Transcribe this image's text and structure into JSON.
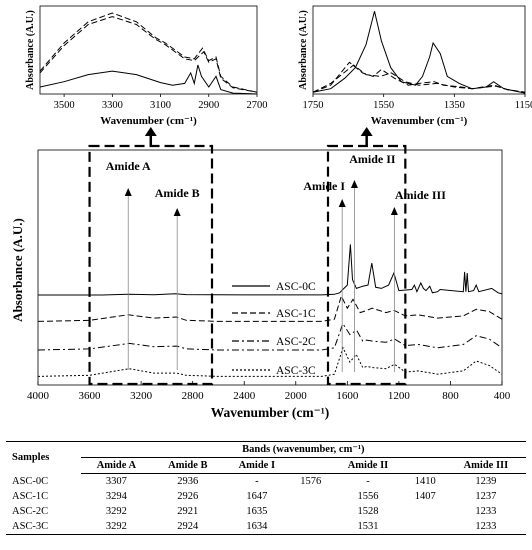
{
  "chart_data": [
    {
      "id": "main",
      "type": "line",
      "xlabel": "Wavenumber",
      "ylabel": "Absorbance (A.U.)",
      "xlim": [
        4000,
        400
      ],
      "x_ticks": [
        "4000",
        "3600",
        "3200",
        "2800",
        "2400",
        "2000",
        "1600",
        "1200",
        "800",
        "400"
      ],
      "series": [
        {
          "name": "ASC-0C",
          "style": "solid",
          "offset": 0.8,
          "points": [
            [
              4000,
              0
            ],
            [
              3500,
              0
            ],
            [
              3300,
              0.006
            ],
            [
              3100,
              0.003
            ],
            [
              2936,
              0.012
            ],
            [
              2850,
              0.004
            ],
            [
              2400,
              0.001
            ],
            [
              1800,
              0.001
            ],
            [
              1700,
              0.006
            ],
            [
              1660,
              0.02
            ],
            [
              1635,
              0.05
            ],
            [
              1600,
              0.09
            ],
            [
              1576,
              0.46
            ],
            [
              1560,
              0.14
            ],
            [
              1530,
              0.06
            ],
            [
              1480,
              0.08
            ],
            [
              1440,
              0.09
            ],
            [
              1410,
              0.29
            ],
            [
              1380,
              0.07
            ],
            [
              1336,
              0.06
            ],
            [
              1280,
              0.09
            ],
            [
              1239,
              0.2
            ],
            [
              1200,
              0.04
            ],
            [
              1100,
              0.05
            ],
            [
              1080,
              0.09
            ],
            [
              1060,
              0.03
            ],
            [
              1030,
              0.11
            ],
            [
              1010,
              0.06
            ],
            [
              990,
              0.04
            ],
            [
              960,
              0.08
            ],
            [
              940,
              0.02
            ],
            [
              900,
              0.03
            ],
            [
              880,
              0.05
            ],
            [
              700,
              0.03
            ],
            [
              690,
              0.21
            ],
            [
              680,
              0.03
            ],
            [
              670,
              0.2
            ],
            [
              660,
              0.03
            ],
            [
              620,
              0.04
            ],
            [
              600,
              0.09
            ],
            [
              580,
              0.03
            ],
            [
              480,
              0.06
            ],
            [
              430,
              0.02
            ],
            [
              400,
              0.01
            ]
          ]
        },
        {
          "name": "ASC-1C",
          "style": "dashed",
          "offset": 0.56,
          "points": [
            [
              4000,
              0
            ],
            [
              3600,
              0.01
            ],
            [
              3300,
              0.06
            ],
            [
              3100,
              0.03
            ],
            [
              2926,
              0.04
            ],
            [
              2850,
              0.01
            ],
            [
              2600,
              0
            ],
            [
              1800,
              0
            ],
            [
              1700,
              0.02
            ],
            [
              1647,
              0.23
            ],
            [
              1600,
              0.12
            ],
            [
              1556,
              0.2
            ],
            [
              1500,
              0.08
            ],
            [
              1450,
              0.1
            ],
            [
              1407,
              0.12
            ],
            [
              1300,
              0.08
            ],
            [
              1237,
              0.1
            ],
            [
              1150,
              0.05
            ],
            [
              1050,
              0.06
            ],
            [
              900,
              0.03
            ],
            [
              700,
              0.05
            ],
            [
              600,
              0.11
            ],
            [
              500,
              0.09
            ],
            [
              400,
              0.02
            ]
          ]
        },
        {
          "name": "ASC-2C",
          "style": "dashdot",
          "offset": 0.3,
          "points": [
            [
              4000,
              0
            ],
            [
              3600,
              0.01
            ],
            [
              3292,
              0.06
            ],
            [
              3100,
              0.03
            ],
            [
              2921,
              0.035
            ],
            [
              2850,
              0.01
            ],
            [
              2600,
              0
            ],
            [
              1800,
              0
            ],
            [
              1700,
              0.02
            ],
            [
              1635,
              0.24
            ],
            [
              1580,
              0.14
            ],
            [
              1528,
              0.18
            ],
            [
              1480,
              0.08
            ],
            [
              1450,
              0.09
            ],
            [
              1400,
              0.08
            ],
            [
              1300,
              0.07
            ],
            [
              1233,
              0.1
            ],
            [
              1150,
              0.04
            ],
            [
              1050,
              0.05
            ],
            [
              900,
              0.02
            ],
            [
              700,
              0.05
            ],
            [
              600,
              0.13
            ],
            [
              500,
              0.1
            ],
            [
              400,
              0.02
            ]
          ]
        },
        {
          "name": "ASC-3C",
          "style": "dotted",
          "offset": 0.06,
          "points": [
            [
              4000,
              0
            ],
            [
              3600,
              0.01
            ],
            [
              3292,
              0.07
            ],
            [
              3100,
              0.03
            ],
            [
              2924,
              0.03
            ],
            [
              2850,
              0.01
            ],
            [
              2600,
              0
            ],
            [
              1800,
              0
            ],
            [
              1700,
              0.02
            ],
            [
              1634,
              0.26
            ],
            [
              1580,
              0.13
            ],
            [
              1531,
              0.2
            ],
            [
              1480,
              0.08
            ],
            [
              1450,
              0.09
            ],
            [
              1400,
              0.08
            ],
            [
              1300,
              0.07
            ],
            [
              1233,
              0.11
            ],
            [
              1150,
              0.04
            ],
            [
              1050,
              0.05
            ],
            [
              900,
              0.02
            ],
            [
              700,
              0.05
            ],
            [
              600,
              0.14
            ],
            [
              500,
              0.1
            ],
            [
              400,
              0.02
            ]
          ]
        }
      ],
      "annotations": [
        {
          "label": "Amide A",
          "x": 3300
        },
        {
          "label": "Amide B",
          "x": 2920
        },
        {
          "label": "Amide I",
          "x": 1640
        },
        {
          "label": "Amide II",
          "x": 1545
        },
        {
          "label": "Amide III",
          "x": 1235
        }
      ],
      "zoom_boxes": [
        [
          3600,
          2650
        ],
        [
          1750,
          1150
        ]
      ]
    },
    {
      "id": "inset_left",
      "type": "line",
      "xlabel": "Wavenumber",
      "ylabel": "Absorbance (A.U.)",
      "xlim": [
        3600,
        2700
      ],
      "x_ticks": [
        "3500",
        "3300",
        "3100",
        "2900",
        "2700"
      ],
      "series": [
        {
          "name": "ASC-0C",
          "style": "solid",
          "points": [
            [
              3600,
              0.08
            ],
            [
              3500,
              0.14
            ],
            [
              3400,
              0.22
            ],
            [
              3300,
              0.26
            ],
            [
              3200,
              0.22
            ],
            [
              3100,
              0.13
            ],
            [
              3050,
              0.1
            ],
            [
              3000,
              0.12
            ],
            [
              2975,
              0.24
            ],
            [
              2960,
              0.12
            ],
            [
              2945,
              0.33
            ],
            [
              2930,
              0.2
            ],
            [
              2900,
              0.08
            ],
            [
              2870,
              0.2
            ],
            [
              2850,
              0.05
            ],
            [
              2800,
              0.01
            ],
            [
              2700,
              0
            ]
          ]
        },
        {
          "name": "ASC-1C",
          "style": "dashed",
          "points": [
            [
              3600,
              0.26
            ],
            [
              3500,
              0.58
            ],
            [
              3400,
              0.82
            ],
            [
              3300,
              0.92
            ],
            [
              3200,
              0.82
            ],
            [
              3120,
              0.64
            ],
            [
              3080,
              0.58
            ],
            [
              3000,
              0.42
            ],
            [
              2960,
              0.4
            ],
            [
              2926,
              0.52
            ],
            [
              2900,
              0.38
            ],
            [
              2870,
              0.42
            ],
            [
              2850,
              0.2
            ],
            [
              2800,
              0.08
            ],
            [
              2700,
              0.02
            ]
          ]
        },
        {
          "name": "ASC-2C",
          "style": "dashed",
          "points": [
            [
              3600,
              0.24
            ],
            [
              3500,
              0.55
            ],
            [
              3400,
              0.79
            ],
            [
              3300,
              0.88
            ],
            [
              3200,
              0.79
            ],
            [
              3120,
              0.62
            ],
            [
              3080,
              0.56
            ],
            [
              3000,
              0.4
            ],
            [
              2960,
              0.38
            ],
            [
              2921,
              0.48
            ],
            [
              2900,
              0.36
            ],
            [
              2870,
              0.4
            ],
            [
              2850,
              0.18
            ],
            [
              2800,
              0.07
            ],
            [
              2700,
              0.02
            ]
          ]
        }
      ]
    },
    {
      "id": "inset_right",
      "type": "line",
      "xlabel": "Wavenumber",
      "ylabel": "Absorbance (A.U.)",
      "xlim": [
        1750,
        1150
      ],
      "x_ticks": [
        "1750",
        "1550",
        "1350",
        "1150"
      ],
      "series": [
        {
          "name": "ASC-0C",
          "style": "solid",
          "points": [
            [
              1750,
              0.02
            ],
            [
              1700,
              0.06
            ],
            [
              1660,
              0.18
            ],
            [
              1630,
              0.3
            ],
            [
              1600,
              0.56
            ],
            [
              1576,
              0.94
            ],
            [
              1556,
              0.6
            ],
            [
              1530,
              0.3
            ],
            [
              1500,
              0.14
            ],
            [
              1460,
              0.1
            ],
            [
              1440,
              0.2
            ],
            [
              1420,
              0.42
            ],
            [
              1410,
              0.58
            ],
            [
              1390,
              0.46
            ],
            [
              1370,
              0.2
            ],
            [
              1336,
              0.12
            ],
            [
              1300,
              0.06
            ],
            [
              1260,
              0.08
            ],
            [
              1239,
              0.14
            ],
            [
              1210,
              0.06
            ],
            [
              1150,
              0.01
            ]
          ]
        },
        {
          "name": "ASC-1C",
          "style": "dashed",
          "points": [
            [
              1750,
              0.02
            ],
            [
              1700,
              0.1
            ],
            [
              1647,
              0.36
            ],
            [
              1610,
              0.24
            ],
            [
              1580,
              0.2
            ],
            [
              1556,
              0.28
            ],
            [
              1520,
              0.18
            ],
            [
              1480,
              0.1
            ],
            [
              1450,
              0.12
            ],
            [
              1407,
              0.14
            ],
            [
              1380,
              0.1
            ],
            [
              1330,
              0.08
            ],
            [
              1300,
              0.06
            ],
            [
              1237,
              0.1
            ],
            [
              1200,
              0.05
            ],
            [
              1150,
              0.02
            ]
          ]
        },
        {
          "name": "ASC-2C",
          "style": "dashed",
          "points": [
            [
              1750,
              0.02
            ],
            [
              1700,
              0.12
            ],
            [
              1635,
              0.33
            ],
            [
              1600,
              0.22
            ],
            [
              1560,
              0.2
            ],
            [
              1528,
              0.24
            ],
            [
              1490,
              0.14
            ],
            [
              1450,
              0.1
            ],
            [
              1400,
              0.12
            ],
            [
              1350,
              0.08
            ],
            [
              1300,
              0.06
            ],
            [
              1233,
              0.09
            ],
            [
              1200,
              0.05
            ],
            [
              1150,
              0.02
            ]
          ]
        }
      ]
    }
  ],
  "figure": {
    "unit": "(cm⁻¹)",
    "inset_left_xlabel": "Wavenumber (cm⁻¹)",
    "inset_right_xlabel": "Wavenumber (cm⁻¹)"
  },
  "table": {
    "title": "Bands (wavenumber, cm⁻¹)",
    "samples_header": "Samples",
    "columns": [
      "Amide A",
      "Amide B",
      "Amide I",
      "",
      "Amide II",
      "",
      "Amide III"
    ],
    "rows": [
      {
        "sample": "ASC-0C",
        "cells": [
          "3307",
          "2936",
          "-",
          "1576",
          "-",
          "1410",
          "1239"
        ]
      },
      {
        "sample": "ASC-1C",
        "cells": [
          "3294",
          "2926",
          "1647",
          "",
          "1556",
          "1407",
          "1237"
        ]
      },
      {
        "sample": "ASC-2C",
        "cells": [
          "3292",
          "2921",
          "1635",
          "",
          "1528",
          "",
          "1233"
        ]
      },
      {
        "sample": "ASC-3C",
        "cells": [
          "3292",
          "2924",
          "1634",
          "",
          "1531",
          "",
          "1233"
        ]
      }
    ]
  }
}
